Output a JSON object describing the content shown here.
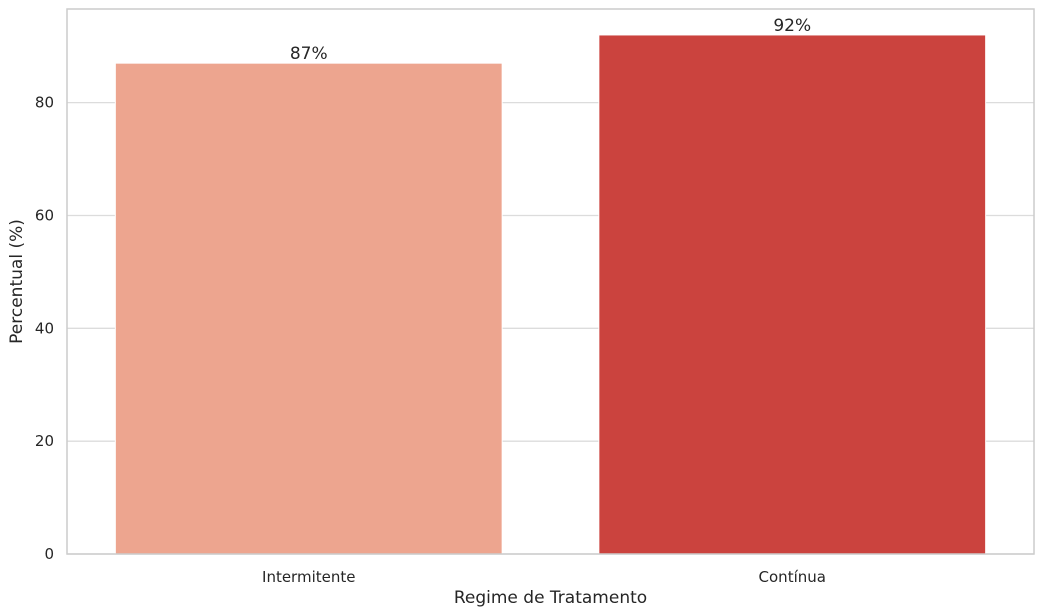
{
  "chart_data": {
    "type": "bar",
    "title": "",
    "xlabel": "Regime de Tratamento",
    "ylabel": "Percentual (%)",
    "categories": [
      "Intermitente",
      "Contínua"
    ],
    "values": [
      87,
      92
    ],
    "value_labels": [
      "87%",
      "92%"
    ],
    "colors": [
      "#eda58f",
      "#cb433e"
    ],
    "ylim": [
      0,
      96.6
    ],
    "yticks": [
      0,
      20,
      40,
      60,
      80
    ],
    "ytick_labels": [
      "0",
      "20",
      "40",
      "60",
      "80"
    ],
    "grid": "horizontal",
    "legend": "none"
  }
}
